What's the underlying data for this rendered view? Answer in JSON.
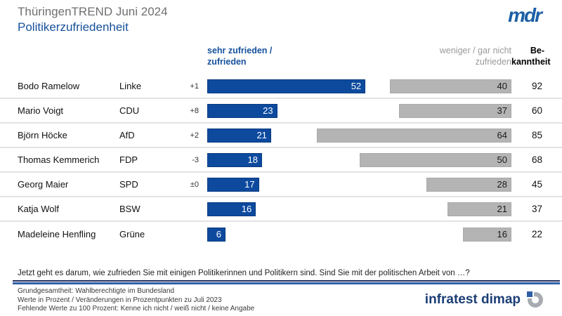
{
  "header": {
    "subtitle": "ThüringenTREND Juni 2024",
    "title": "Politikerzufriedenheit",
    "mdr_logo_text": "mdr"
  },
  "chart_data": {
    "type": "bar",
    "title": "Politikerzufriedenheit",
    "subtitle": "ThüringenTREND Juni 2024",
    "unit": "Prozent",
    "axis_max": 100,
    "legend": {
      "positive_line1": "sehr zufrieden /",
      "positive_line2": "zufrieden",
      "negative_line1": "weniger / gar nicht",
      "negative_line2": "zufrieden",
      "awareness_line1": "Be-",
      "awareness_line2": "kanntheit"
    },
    "rows": [
      {
        "name": "Bodo Ramelow",
        "party": "Linke",
        "change": "+1",
        "zufrieden": 52,
        "unzufrieden": 40,
        "bekanntheit": 92
      },
      {
        "name": "Mario Voigt",
        "party": "CDU",
        "change": "+8",
        "zufrieden": 23,
        "unzufrieden": 37,
        "bekanntheit": 60
      },
      {
        "name": "Björn Höcke",
        "party": "AfD",
        "change": "+2",
        "zufrieden": 21,
        "unzufrieden": 64,
        "bekanntheit": 85
      },
      {
        "name": "Thomas Kemmerich",
        "party": "FDP",
        "change": "-3",
        "zufrieden": 18,
        "unzufrieden": 50,
        "bekanntheit": 68
      },
      {
        "name": "Georg Maier",
        "party": "SPD",
        "change": "±0",
        "zufrieden": 17,
        "unzufrieden": 28,
        "bekanntheit": 45
      },
      {
        "name": "Katja Wolf",
        "party": "BSW",
        "change": "",
        "zufrieden": 16,
        "unzufrieden": 21,
        "bekanntheit": 37
      },
      {
        "name": "Madeleine Henfling",
        "party": "Grüne",
        "change": "",
        "zufrieden": 6,
        "unzufrieden": 16,
        "bekanntheit": 22
      }
    ]
  },
  "question": "Jetzt geht es darum, wie zufrieden Sie mit einigen Politikerinnen und Politikern sind. Sind Sie mit der politischen Arbeit von …?",
  "footer": {
    "line1": "Grundgesamtheit: Wahlberechtigte im Bundesland",
    "line2": "Werte in Prozent / Veränderungen in Prozentpunkten zu Juli 2023",
    "line3": "Fehlende Werte zu 100 Prozent: Kenne ich nicht / weiß nicht / keine Angabe",
    "brand": "infratest dimap"
  },
  "colors": {
    "bar_positive": "#0d4a9e",
    "bar_negative": "#b4b4b4",
    "title_blue": "#17509b",
    "title_gray": "#6f6f6f",
    "header_gray": "#9a9a9a",
    "rule_dark": "#1e2f5e",
    "rule_blue": "#2f5ea7"
  }
}
